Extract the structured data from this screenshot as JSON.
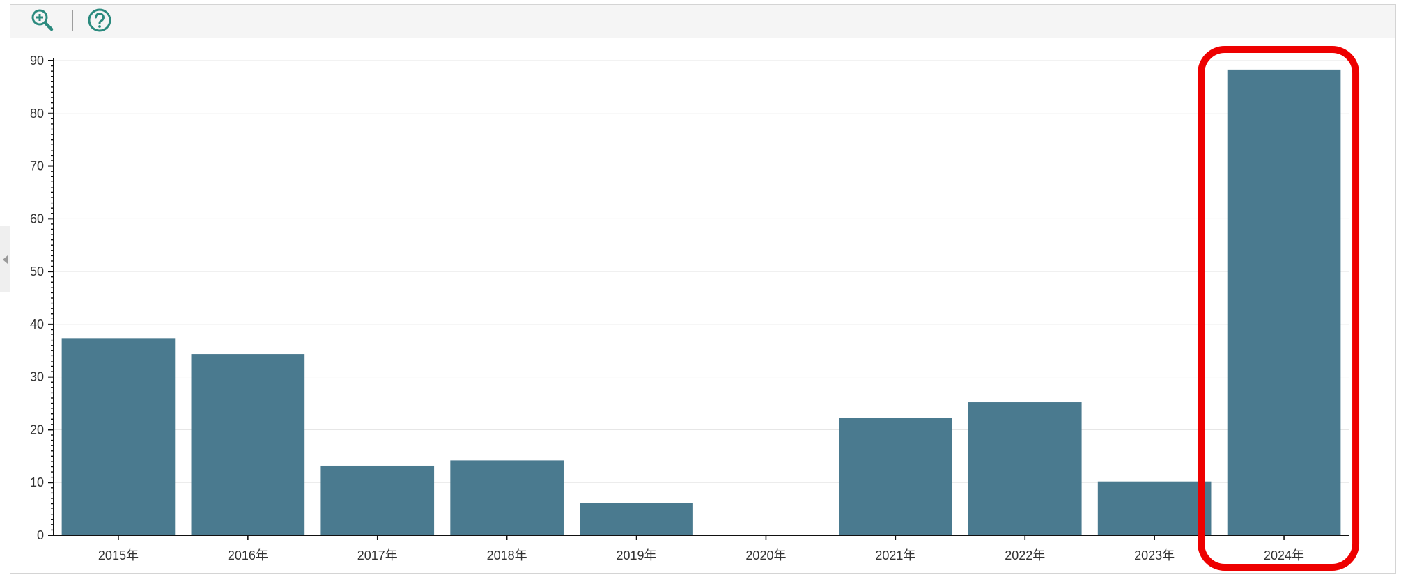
{
  "toolbar": {
    "buttons": [
      {
        "name": "zoom-in",
        "icon": "zoom-in-icon"
      },
      {
        "name": "help",
        "icon": "help-icon"
      }
    ],
    "icon_color": "#2b8a7e"
  },
  "chart_data": {
    "type": "bar",
    "title": "",
    "xlabel": "",
    "ylabel": "",
    "categories": [
      "2015年",
      "2016年",
      "2017年",
      "2018年",
      "2019年",
      "2020年",
      "2021年",
      "2022年",
      "2023年",
      "2024年"
    ],
    "values": [
      37.3,
      34.3,
      13.2,
      14.2,
      6.1,
      0,
      22.2,
      25.2,
      10.2,
      88.3
    ],
    "ylim": [
      0,
      90
    ],
    "yticks": [
      0,
      10,
      20,
      30,
      40,
      50,
      60,
      70,
      80,
      90
    ],
    "grid": true,
    "bar_color": "#4a7a8f",
    "highlight": {
      "category": "2024年",
      "color": "#ee0000"
    }
  }
}
